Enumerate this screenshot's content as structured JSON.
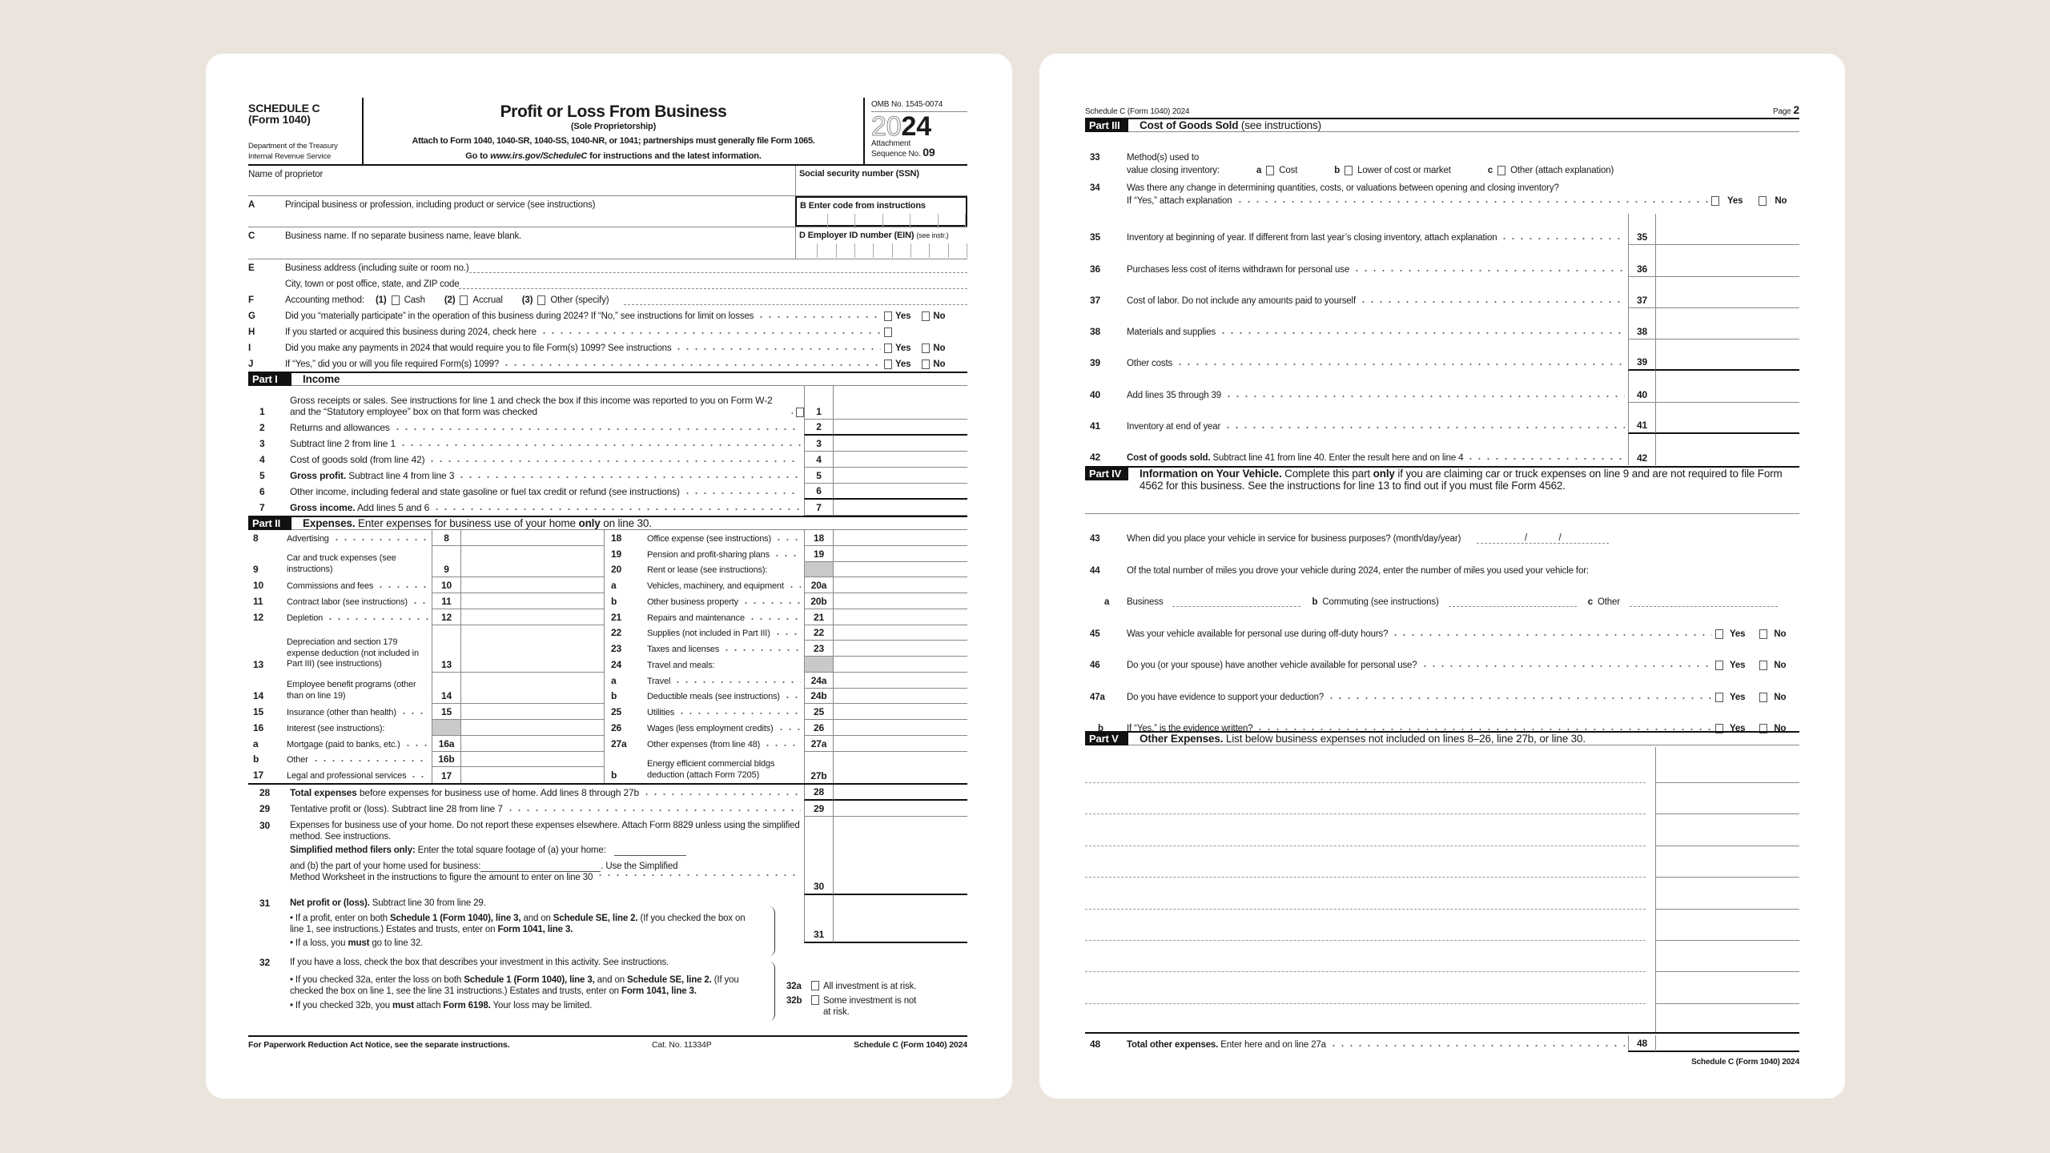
{
  "colors": {
    "background": "#ebe4dd",
    "paper": "#ffffff",
    "ink": "#1a1a1a",
    "shaded": "#c9c9c9"
  },
  "p1": {
    "header": {
      "schedule": "SCHEDULE C",
      "form": "(Form 1040)",
      "dept": "Department of the Treasury",
      "irs": "Internal Revenue Service",
      "title": "Profit or Loss From Business",
      "subtitle": "(Sole Proprietorship)",
      "attach": "Attach to Form 1040, 1040-SR, 1040-SS, 1040-NR, or 1041; partnerships must generally file Form 1065.",
      "goto_pre": "Go to ",
      "goto_url": "www.irs.gov/ScheduleC",
      "goto_post": " for instructions and the latest information.",
      "omb": "OMB No. 1545-0074",
      "year_light": "20",
      "year_bold": "24",
      "attachment": "Attachment",
      "sequence": "Sequence No. ",
      "seq_no": "09"
    },
    "top": {
      "name_label": "Name of proprietor",
      "ssn_label": "Social security number (SSN)",
      "a": {
        "letter": "A",
        "label": "Principal business or profession, including product or service (see instructions)"
      },
      "b": {
        "letter": "B",
        "label": "Enter code from instructions"
      },
      "c": {
        "letter": "C",
        "label": "Business name. If no separate business name, leave blank."
      },
      "d": {
        "letter": "D",
        "label": "Employer ID number (EIN)",
        "note": "(see instr.)"
      },
      "e": {
        "letter": "E",
        "label": "Business address (including suite or room no.)",
        "label2": "City, town or post office, state, and ZIP code"
      },
      "f": {
        "letter": "F",
        "label": "Accounting method:",
        "options": [
          {
            "num": "(1)",
            "label": "Cash"
          },
          {
            "num": "(2)",
            "label": "Accrual"
          },
          {
            "num": "(3)",
            "label": "Other (specify)"
          }
        ]
      },
      "questions": [
        {
          "letter": "G",
          "text": "Did you “materially participate” in the operation of this business during 2024? If “No,” see instructions for limit on losses",
          "yes": "Yes",
          "no": "No"
        },
        {
          "letter": "H",
          "text": "If you started or acquired this business during 2024, check here"
        },
        {
          "letter": "I",
          "text": "Did you make any payments in 2024 that would require you to file Form(s) 1099? See instructions",
          "yes": "Yes",
          "no": "No"
        },
        {
          "letter": "J",
          "text": "If “Yes,” did you or will you file required Form(s) 1099?",
          "yes": "Yes",
          "no": "No"
        }
      ]
    },
    "part1": {
      "tag": "Part I",
      "title": "Income",
      "lines": [
        {
          "n": "1",
          "segs": [
            {
              "t": "Gross receipts or sales. See instructions for line 1 and check the box if this income was reported to you on Form W-2 and the “Statutory employee” box on that form was checked"
            }
          ],
          "box": "1"
        },
        {
          "n": "2",
          "segs": [
            {
              "t": "Returns and allowances"
            }
          ],
          "box": "2"
        },
        {
          "n": "3",
          "segs": [
            {
              "t": "Subtract line 2 from line 1"
            }
          ],
          "box": "3"
        },
        {
          "n": "4",
          "segs": [
            {
              "t": "Cost of goods sold (from line 42)"
            }
          ],
          "box": "4"
        },
        {
          "n": "5",
          "segs": [
            {
              "t": "Gross profit.",
              "b": true
            },
            {
              "t": " Subtract line 4 from line 3"
            }
          ],
          "box": "5"
        },
        {
          "n": "6",
          "segs": [
            {
              "t": "Other income, including federal and state gasoline or fuel tax credit or refund (see instructions)"
            }
          ],
          "box": "6"
        },
        {
          "n": "7",
          "segs": [
            {
              "t": "Gross income.",
              "b": true
            },
            {
              "t": " Add lines 5 and 6"
            }
          ],
          "box": "7"
        }
      ]
    },
    "part2": {
      "tag": "Part II",
      "segs": [
        {
          "t": "Expenses.",
          "b": true
        },
        {
          "t": " Enter expenses for business use of your home "
        },
        {
          "t": "only",
          "b": true
        },
        {
          "t": " on line 30."
        }
      ],
      "left": [
        {
          "n": "8",
          "t": "Advertising",
          "box": "8"
        },
        {
          "n": "9",
          "t": "Car and truck expenses (see instructions)",
          "box": "9"
        },
        {
          "n": "10",
          "t": "Commissions and fees",
          "box": "10"
        },
        {
          "n": "11",
          "t": "Contract labor (see instructions)",
          "box": "11"
        },
        {
          "n": "12",
          "t": "Depletion",
          "box": "12"
        },
        {
          "n": "13",
          "t": "Depreciation and section 179 expense deduction (not included in Part III) (see instructions)",
          "box": "13"
        },
        {
          "n": "14",
          "t": "Employee benefit programs (other than on line 19)",
          "box": "14"
        },
        {
          "n": "15",
          "t": "Insurance (other than health)",
          "box": "15"
        },
        {
          "n": "16",
          "t": "Interest (see instructions):",
          "box": ""
        },
        {
          "n": "a",
          "t": "Mortgage (paid to banks, etc.)",
          "box": "16a"
        },
        {
          "n": "b",
          "t": "Other",
          "box": "16b"
        },
        {
          "n": "17",
          "t": "Legal and professional services",
          "box": "17"
        }
      ],
      "right": [
        {
          "n": "18",
          "t": "Office expense (see instructions)",
          "box": "18"
        },
        {
          "n": "19",
          "t": "Pension and profit-sharing plans",
          "box": "19"
        },
        {
          "n": "20",
          "t": "Rent or lease (see instructions):",
          "box": ""
        },
        {
          "n": "a",
          "t": "Vehicles, machinery, and equipment",
          "box": "20a"
        },
        {
          "n": "b",
          "t": "Other business property",
          "box": "20b"
        },
        {
          "n": "21",
          "t": "Repairs and maintenance",
          "box": "21"
        },
        {
          "n": "22",
          "t": "Supplies (not included in Part III)",
          "box": "22"
        },
        {
          "n": "23",
          "t": "Taxes and licenses",
          "box": "23"
        },
        {
          "n": "24",
          "t": "Travel and meals:",
          "box": ""
        },
        {
          "n": "a",
          "t": "Travel",
          "box": "24a"
        },
        {
          "n": "b",
          "t": "Deductible meals (see instructions)",
          "box": "24b"
        },
        {
          "n": "25",
          "t": "Utilities",
          "box": "25"
        },
        {
          "n": "26",
          "t": "Wages (less employment credits)",
          "box": "26"
        },
        {
          "n": "27a",
          "t": "Other expenses (from line 48)",
          "box": "27a"
        },
        {
          "n": "b",
          "t": "Energy efficient commercial bldgs deduction (attach Form 7205)",
          "box": "27b"
        }
      ],
      "after": [
        {
          "n": "28",
          "segs": [
            {
              "t": "Total expenses",
              "b": true
            },
            {
              "t": " before expenses for business use of home. Add lines 8 through 27b"
            }
          ],
          "box": "28"
        },
        {
          "n": "29",
          "segs": [
            {
              "t": "Tentative profit or (loss). Subtract line 28 from line 7"
            }
          ],
          "box": "29"
        }
      ],
      "l30": {
        "n": "30",
        "p1": "Expenses for business use of your home. Do not report these expenses elsewhere. Attach Form 8829 unless using the simplified method. See instructions.",
        "simp_b": "Simplified method filers only:",
        "simp": " Enter the total square footage of (a) your home:",
        "b_text": "and (b) the part of your home used for business:",
        "use": ". Use the Simplified",
        "method": "Method Worksheet in the instructions to figure the amount to enter on line 30",
        "box": "30"
      },
      "l31": {
        "n": "31",
        "title": [
          {
            "t": "Net profit or (loss).",
            "b": true
          },
          {
            "t": " Subtract line 30 from line 29."
          }
        ],
        "bullet1": [
          {
            "t": "• If a profit, enter on both "
          },
          {
            "t": "Schedule 1 (Form 1040), line 3,",
            "b": true
          },
          {
            "t": " and on "
          },
          {
            "t": "Schedule SE, line 2.",
            "b": true
          },
          {
            "t": " (If you checked the box on line 1, see instructions.) Estates and trusts, enter on "
          },
          {
            "t": "Form 1041, line 3.",
            "b": true
          }
        ],
        "bullet2": [
          {
            "t": "• If a loss, you "
          },
          {
            "t": "must",
            "b": true
          },
          {
            "t": " go to line 32."
          }
        ],
        "box": "31"
      },
      "l32": {
        "n": "32",
        "text": "If you have a loss, check the box that describes your investment in this activity. See instructions.",
        "bullet1": [
          {
            "t": "• If you checked 32a, enter the loss on both "
          },
          {
            "t": "Schedule 1 (Form 1040), line 3,",
            "b": true
          },
          {
            "t": " and on "
          },
          {
            "t": "Schedule SE, line 2.",
            "b": true
          },
          {
            "t": " (If you checked the box on line 1, see the line 31 instructions.) Estates and trusts, enter on "
          },
          {
            "t": "Form 1041, line 3.",
            "b": true
          }
        ],
        "bullet2": [
          {
            "t": "• If you checked 32b, you "
          },
          {
            "t": "must",
            "b": true
          },
          {
            "t": " attach "
          },
          {
            "t": "Form 6198.",
            "b": true
          },
          {
            "t": " Your loss may be limited."
          }
        ],
        "a_box": "32a",
        "a_label": "All investment is at risk.",
        "b_box": "32b",
        "b_label": "Some investment is not at risk."
      }
    },
    "footer": {
      "left": "For Paperwork Reduction Act Notice, see the separate instructions.",
      "cat": "Cat. No. 11334P",
      "right": "Schedule C (Form 1040) 2024"
    }
  },
  "p2": {
    "header": {
      "left": "Schedule C (Form 1040) 2024",
      "page": "Page ",
      "page_no": "2"
    },
    "part3": {
      "tag": "Part III",
      "title": "Cost of Goods Sold",
      "sub": " (see instructions)",
      "l33": {
        "n": "33",
        "t1": "Method(s) used to",
        "t2": "value closing inventory:",
        "opts": [
          {
            "k": "a",
            "label": "Cost"
          },
          {
            "k": "b",
            "label": "Lower of cost or market"
          },
          {
            "k": "c",
            "label": "Other (attach explanation)"
          }
        ]
      },
      "l34": {
        "n": "34",
        "t1": "Was there any change in determining quantities, costs, or valuations between opening and closing inventory?",
        "t2": "If “Yes,” attach explanation",
        "yes": "Yes",
        "no": "No"
      },
      "lines": [
        {
          "n": "35",
          "segs": [
            {
              "t": "Inventory at beginning of year. If different from last year’s closing inventory, attach explanation"
            }
          ],
          "box": "35"
        },
        {
          "n": "36",
          "segs": [
            {
              "t": "Purchases less cost of items withdrawn for personal use"
            }
          ],
          "box": "36"
        },
        {
          "n": "37",
          "segs": [
            {
              "t": "Cost of labor. Do not include any amounts paid to yourself"
            }
          ],
          "box": "37"
        },
        {
          "n": "38",
          "segs": [
            {
              "t": "Materials and supplies"
            }
          ],
          "box": "38"
        },
        {
          "n": "39",
          "segs": [
            {
              "t": "Other costs"
            }
          ],
          "box": "39"
        },
        {
          "n": "40",
          "segs": [
            {
              "t": "Add lines 35 through 39"
            }
          ],
          "box": "40"
        },
        {
          "n": "41",
          "segs": [
            {
              "t": "Inventory at end of year"
            }
          ],
          "box": "41"
        },
        {
          "n": "42",
          "segs": [
            {
              "t": "Cost of goods sold.",
              "b": true
            },
            {
              "t": " Subtract line 41 from line 40. Enter the result here and on line 4"
            }
          ],
          "box": "42"
        }
      ]
    },
    "part4": {
      "tag": "Part IV",
      "segs": [
        {
          "t": "Information on Your Vehicle.",
          "b": true
        },
        {
          "t": " Complete this part "
        },
        {
          "t": "only",
          "b": true
        },
        {
          "t": " if you are claiming car or truck expenses on line 9 and are not required to file Form 4562 for this business. See the instructions for line 13 to find out if you must file Form 4562."
        }
      ],
      "l43": {
        "n": "43",
        "t": "When did you place your vehicle in service for business purposes? (month/day/year)",
        "sep": "/"
      },
      "l44": {
        "n": "44",
        "t": "Of the total number of miles you drove your vehicle during 2024, enter the number of miles you used your vehicle for:",
        "a": {
          "k": "a",
          "label": "Business"
        },
        "b": {
          "k": "b",
          "label": "Commuting (see instructions)"
        },
        "c": {
          "k": "c",
          "label": "Other"
        }
      },
      "yn": [
        {
          "n": "45",
          "t": "Was your vehicle available for personal use during off-duty hours?",
          "yes": "Yes",
          "no": "No"
        },
        {
          "n": "46",
          "t": "Do you (or your spouse) have another vehicle available for personal use?",
          "yes": "Yes",
          "no": "No"
        },
        {
          "n": "47a",
          "t": "Do you have evidence to support your deduction?",
          "yes": "Yes",
          "no": "No"
        },
        {
          "n": "b",
          "t": "If “Yes,” is the evidence written?",
          "yes": "Yes",
          "no": "No"
        }
      ]
    },
    "part5": {
      "tag": "Part V",
      "segs": [
        {
          "t": "Other Expenses.",
          "b": true
        },
        {
          "t": " List below business expenses not included on lines 8–26, line 27b, or line 30."
        }
      ],
      "l48": {
        "n": "48",
        "segs": [
          {
            "t": "Total other expenses.",
            "b": true
          },
          {
            "t": " Enter here and on line 27a"
          }
        ],
        "box": "48"
      }
    },
    "footer": {
      "right": "Schedule C (Form 1040) 2024"
    }
  }
}
